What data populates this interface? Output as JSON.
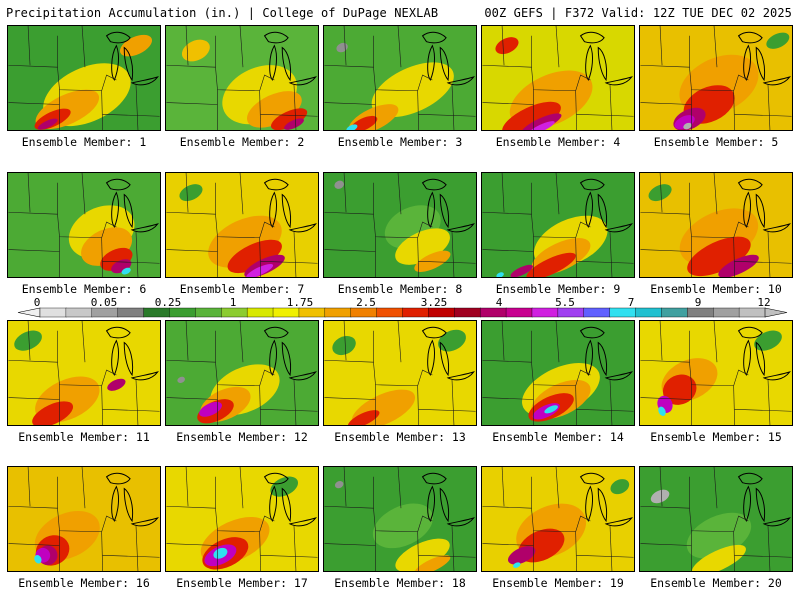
{
  "header": {
    "title": "Precipitation Accumulation (in.) | College of DuPage NEXLAB",
    "run_info": "00Z GEFS | F372 Valid: 12Z TUE DEC 02 2025"
  },
  "panels": [
    {
      "label": "Ensemble Member: 1",
      "bg": "#3b9e30",
      "blobs": [
        [
          "#e8d800",
          80,
          70,
          95,
          55
        ],
        [
          "#f0a000",
          60,
          85,
          70,
          30
        ],
        [
          "#e02000",
          45,
          95,
          40,
          15
        ],
        [
          "#b0006a",
          40,
          100,
          22,
          7
        ],
        [
          "#f0a000",
          130,
          20,
          35,
          18
        ]
      ]
    },
    {
      "label": "Ensemble Member: 2",
      "bg": "#5ab43a",
      "blobs": [
        [
          "#e8d800",
          95,
          70,
          80,
          55
        ],
        [
          "#f0a000",
          110,
          85,
          60,
          30
        ],
        [
          "#e02000",
          125,
          95,
          40,
          16
        ],
        [
          "#b0006a",
          130,
          100,
          22,
          8
        ],
        [
          "#f0c000",
          30,
          25,
          30,
          20
        ]
      ]
    },
    {
      "label": "Ensemble Member: 3",
      "bg": "#4caa34",
      "blobs": [
        [
          "#e8d800",
          90,
          65,
          90,
          45
        ],
        [
          "#f0a000",
          50,
          95,
          55,
          22
        ],
        [
          "#e02000",
          40,
          100,
          30,
          12
        ],
        [
          "#30e0f0",
          28,
          104,
          12,
          6
        ],
        [
          "#909090",
          18,
          22,
          12,
          9
        ]
      ]
    },
    {
      "label": "Ensemble Member: 4",
      "bg": "#d8d800",
      "blobs": [
        [
          "#f0a000",
          70,
          75,
          90,
          50
        ],
        [
          "#e02000",
          50,
          95,
          65,
          25
        ],
        [
          "#b0006a",
          60,
          100,
          45,
          12
        ],
        [
          "#d020e0",
          60,
          104,
          30,
          7
        ],
        [
          "#e02000",
          25,
          20,
          25,
          15
        ]
      ]
    },
    {
      "label": "Ensemble Member: 5",
      "bg": "#e8c000",
      "blobs": [
        [
          "#f0a000",
          80,
          60,
          85,
          55
        ],
        [
          "#e02000",
          70,
          80,
          55,
          35
        ],
        [
          "#b0006a",
          50,
          95,
          35,
          20
        ],
        [
          "#c000c0",
          45,
          98,
          22,
          12
        ],
        [
          "#b0b0b0",
          48,
          102,
          9,
          6
        ],
        [
          "#3b9e30",
          140,
          15,
          25,
          14
        ]
      ]
    },
    {
      "label": "Ensemble Member: 6",
      "bg": "#4caa34",
      "blobs": [
        [
          "#e8d800",
          95,
          60,
          70,
          50
        ],
        [
          "#f0a000",
          100,
          75,
          55,
          35
        ],
        [
          "#e02000",
          110,
          88,
          35,
          20
        ],
        [
          "#b0006a",
          115,
          95,
          22,
          12
        ],
        [
          "#30e0f0",
          120,
          100,
          10,
          6
        ]
      ]
    },
    {
      "label": "Ensemble Member: 7",
      "bg": "#e8d000",
      "blobs": [
        [
          "#f0a000",
          80,
          70,
          80,
          45
        ],
        [
          "#e02000",
          90,
          85,
          60,
          25
        ],
        [
          "#b0006a",
          100,
          95,
          45,
          15
        ],
        [
          "#d020e0",
          95,
          100,
          30,
          8
        ],
        [
          "#3b9e30",
          25,
          20,
          25,
          15
        ]
      ]
    },
    {
      "label": "Ensemble Member: 8",
      "bg": "#3b9e30",
      "blobs": [
        [
          "#5ab43a",
          90,
          55,
          60,
          40
        ],
        [
          "#e8d800",
          100,
          75,
          60,
          30
        ],
        [
          "#f0a000",
          110,
          90,
          40,
          15
        ],
        [
          "#909090",
          15,
          12,
          10,
          8
        ]
      ]
    },
    {
      "label": "Ensemble Member: 9",
      "bg": "#3b9e30",
      "blobs": [
        [
          "#e8d800",
          90,
          70,
          80,
          45
        ],
        [
          "#f0a000",
          80,
          85,
          65,
          28
        ],
        [
          "#e02000",
          70,
          95,
          55,
          16
        ],
        [
          "#b0006a",
          40,
          100,
          25,
          8
        ],
        [
          "#30e0f0",
          18,
          104,
          8,
          5
        ]
      ]
    },
    {
      "label": "Ensemble Member: 10",
      "bg": "#e8c000",
      "blobs": [
        [
          "#f0a000",
          80,
          65,
          85,
          50
        ],
        [
          "#e02000",
          80,
          85,
          70,
          30
        ],
        [
          "#b0006a",
          100,
          95,
          45,
          15
        ],
        [
          "#3b9e30",
          20,
          20,
          25,
          15
        ]
      ]
    },
    {
      "label": "Ensemble Member: 11",
      "bg": "#e8d800",
      "blobs": [
        [
          "#f0a000",
          60,
          80,
          70,
          40
        ],
        [
          "#e02000",
          45,
          95,
          45,
          20
        ],
        [
          "#b0006a",
          110,
          65,
          20,
          10
        ],
        [
          "#3b9e30",
          20,
          20,
          30,
          18
        ]
      ]
    },
    {
      "label": "Ensemble Member: 12",
      "bg": "#4caa34",
      "blobs": [
        [
          "#e8d800",
          80,
          70,
          75,
          45
        ],
        [
          "#f0a000",
          60,
          85,
          55,
          30
        ],
        [
          "#e02000",
          50,
          92,
          40,
          20
        ],
        [
          "#c000c0",
          45,
          90,
          25,
          12
        ],
        [
          "#909090",
          15,
          60,
          8,
          6
        ]
      ]
    },
    {
      "label": "Ensemble Member: 13",
      "bg": "#e8d800",
      "blobs": [
        [
          "#f0a000",
          60,
          90,
          70,
          30
        ],
        [
          "#e02000",
          40,
          100,
          35,
          12
        ],
        [
          "#3b9e30",
          130,
          20,
          30,
          20
        ],
        [
          "#3b9e30",
          20,
          25,
          25,
          18
        ]
      ]
    },
    {
      "label": "Ensemble Member: 14",
      "bg": "#3b9e30",
      "blobs": [
        [
          "#e8d800",
          80,
          70,
          85,
          45
        ],
        [
          "#f0a000",
          80,
          80,
          65,
          32
        ],
        [
          "#e02000",
          70,
          88,
          50,
          22
        ],
        [
          "#c000c0",
          65,
          92,
          30,
          12
        ],
        [
          "#30e0f0",
          70,
          90,
          15,
          6
        ]
      ]
    },
    {
      "label": "Ensemble Member: 15",
      "bg": "#e8d800",
      "blobs": [
        [
          "#f0a000",
          50,
          60,
          60,
          40
        ],
        [
          "#e02000",
          40,
          70,
          35,
          30
        ],
        [
          "#c000c0",
          25,
          85,
          15,
          18
        ],
        [
          "#30e0f0",
          22,
          92,
          7,
          10
        ],
        [
          "#3b9e30",
          130,
          20,
          30,
          18
        ]
      ]
    },
    {
      "label": "Ensemble Member: 16",
      "bg": "#e8c000",
      "blobs": [
        [
          "#f0a000",
          60,
          70,
          70,
          45
        ],
        [
          "#e02000",
          45,
          85,
          35,
          30
        ],
        [
          "#b0006a",
          40,
          90,
          20,
          20
        ],
        [
          "#c000c0",
          35,
          90,
          15,
          15
        ],
        [
          "#30e0f0",
          30,
          94,
          7,
          9
        ]
      ]
    },
    {
      "label": "Ensemble Member: 17",
      "bg": "#e8d800",
      "blobs": [
        [
          "#f0a000",
          70,
          75,
          75,
          40
        ],
        [
          "#e02000",
          60,
          88,
          50,
          28
        ],
        [
          "#c000c0",
          55,
          90,
          35,
          18
        ],
        [
          "#30e0f0",
          55,
          88,
          15,
          10
        ],
        [
          "#3b9e30",
          120,
          20,
          30,
          18
        ]
      ]
    },
    {
      "label": "Ensemble Member: 18",
      "bg": "#3b9e30",
      "blobs": [
        [
          "#5ab43a",
          80,
          60,
          65,
          40
        ],
        [
          "#e8d800",
          100,
          90,
          60,
          25
        ],
        [
          "#f0a000",
          110,
          100,
          40,
          12
        ],
        [
          "#909090",
          15,
          18,
          9,
          7
        ]
      ]
    },
    {
      "label": "Ensemble Member: 19",
      "bg": "#e8d000",
      "blobs": [
        [
          "#f0a000",
          70,
          65,
          75,
          50
        ],
        [
          "#e02000",
          60,
          80,
          50,
          30
        ],
        [
          "#b0006a",
          40,
          90,
          30,
          15
        ],
        [
          "#30e0f0",
          35,
          100,
          8,
          5
        ],
        [
          "#3b9e30",
          140,
          20,
          20,
          14
        ]
      ]
    },
    {
      "label": "Ensemble Member: 20",
      "bg": "#3b9e30",
      "blobs": [
        [
          "#5ab43a",
          80,
          70,
          70,
          40
        ],
        [
          "#e8d800",
          80,
          95,
          60,
          20
        ],
        [
          "#b0b0b0",
          20,
          30,
          20,
          12
        ]
      ]
    }
  ],
  "legend": {
    "ticks": [
      "0",
      "0.05",
      "0.25",
      "1",
      "1.75",
      "2.5",
      "3.25",
      "4",
      "5.5",
      "7",
      "9",
      "12"
    ],
    "colors": [
      "#e0e0e0",
      "#c8c8c8",
      "#a0a0a0",
      "#808080",
      "#2a7a2a",
      "#3b9e30",
      "#5ab43a",
      "#8ccc30",
      "#d8e800",
      "#f0f000",
      "#f0c000",
      "#f0a000",
      "#f08000",
      "#f05000",
      "#e02000",
      "#c00000",
      "#a00020",
      "#b0006a",
      "#c80090",
      "#d020e0",
      "#a040f0",
      "#6060ff",
      "#30e0f0",
      "#20c0d0",
      "#40a0a0",
      "#808080",
      "#a0a0a0",
      "#c0c0c0"
    ]
  }
}
